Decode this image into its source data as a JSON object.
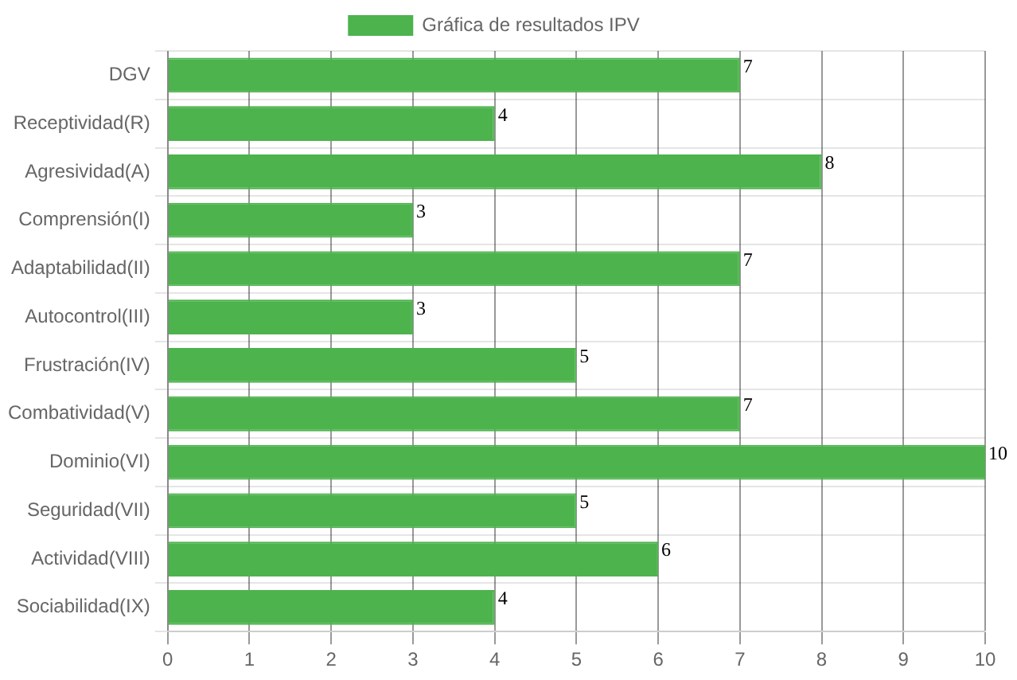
{
  "chart_data": {
    "type": "bar",
    "orientation": "horizontal",
    "categories": [
      "DGV",
      "Receptividad(R)",
      "Agresividad(A)",
      "Comprensión(I)",
      "Adaptabilidad(II)",
      "Autocontrol(III)",
      "Frustración(IV)",
      "Combatividad(V)",
      "Dominio(VI)",
      "Seguridad(VII)",
      "Actividad(VIII)",
      "Sociabilidad(IX)"
    ],
    "series": [
      {
        "name": "Gráfica de resultados IPV",
        "color": "#4db34d",
        "values": [
          7,
          4,
          8,
          3,
          7,
          3,
          5,
          7,
          10,
          5,
          6,
          4
        ]
      }
    ],
    "xlim": [
      0,
      10
    ],
    "xticks": [
      0,
      1,
      2,
      3,
      4,
      5,
      6,
      7,
      8,
      9,
      10
    ],
    "grid": true,
    "legend": "top",
    "data_labels": true
  }
}
